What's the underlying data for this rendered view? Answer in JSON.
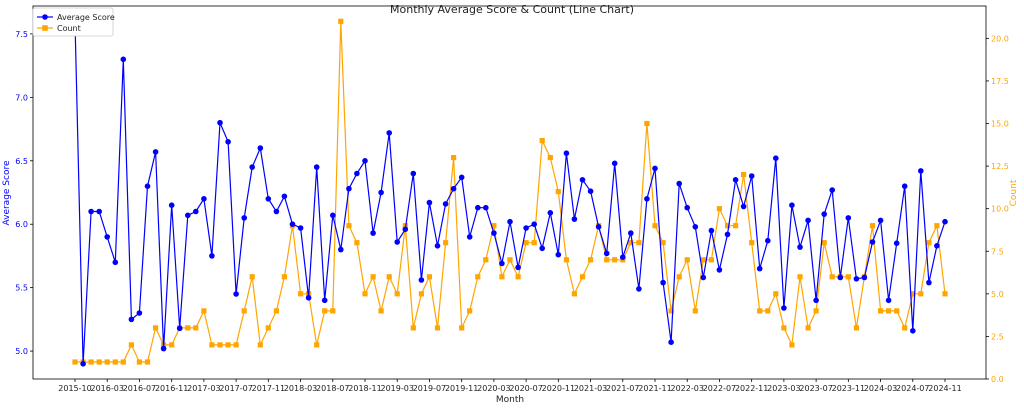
{
  "chart_data": {
    "type": "line",
    "title": "Monthly Average Score & Count (Line Chart)",
    "xlabel": "Month",
    "ylabel_left": "Average Score",
    "ylabel_right": "Count",
    "x_tick_labels": [
      "2015-10",
      "2016-03",
      "2016-07",
      "2016-11",
      "2017-03",
      "2017-07",
      "2017-11",
      "2018-03",
      "2018-07",
      "2018-11",
      "2019-03",
      "2019-07",
      "2019-11",
      "2020-03",
      "2020-07",
      "2020-11",
      "2021-03",
      "2021-07",
      "2021-11",
      "2022-03",
      "2022-07",
      "2022-11",
      "2023-03",
      "2023-07",
      "2023-11",
      "2024-03",
      "2024-07",
      "2024-11"
    ],
    "ylim_left": [
      4.78,
      7.72
    ],
    "ylim_right": [
      0,
      21.9
    ],
    "y_ticks_left": [
      "5.0",
      "5.5",
      "6.0",
      "6.5",
      "7.0",
      "7.5"
    ],
    "y_ticks_right": [
      "0.0",
      "2.5",
      "5.0",
      "7.5",
      "10.0",
      "12.5",
      "15.0",
      "17.5",
      "20.0"
    ],
    "legend_position": "top-left",
    "grid": false,
    "series": [
      {
        "name": "Average Score",
        "color": "#0000ff",
        "marker": "circle",
        "axis": "left",
        "values": [
          7.6,
          4.9,
          6.1,
          6.1,
          5.9,
          5.7,
          7.3,
          5.25,
          5.3,
          6.3,
          6.57,
          5.02,
          6.15,
          5.18,
          6.07,
          6.1,
          6.2,
          5.75,
          6.8,
          6.65,
          5.45,
          6.05,
          6.45,
          6.6,
          6.2,
          6.1,
          6.22,
          6.0,
          5.97,
          5.42,
          6.45,
          5.4,
          6.07,
          5.8,
          6.28,
          6.4,
          6.5,
          5.93,
          6.25,
          6.72,
          5.86,
          5.96,
          6.4,
          5.56,
          6.17,
          5.83,
          6.16,
          6.28,
          6.37,
          5.9,
          6.13,
          6.13,
          5.93,
          5.69,
          6.02,
          5.66,
          5.97,
          6.0,
          5.81,
          6.09,
          5.76,
          6.56,
          6.04,
          6.35,
          6.26,
          5.98,
          5.77,
          6.48,
          5.74,
          5.93,
          5.49,
          6.2,
          6.44,
          5.54,
          5.07,
          6.32,
          6.13,
          5.98,
          5.58,
          5.95,
          5.64,
          5.92,
          6.35,
          6.14,
          6.38,
          5.65,
          5.87,
          6.52,
          5.34,
          6.15,
          5.82,
          6.03,
          5.4,
          6.08,
          6.27,
          5.58,
          6.05,
          5.57,
          5.58,
          5.86,
          6.03,
          5.4,
          5.85,
          6.3,
          5.16,
          6.42,
          5.54,
          5.83,
          6.02
        ]
      },
      {
        "name": "Count",
        "color": "#ffa500",
        "marker": "square",
        "axis": "right",
        "values": [
          1,
          1,
          1,
          1,
          1,
          1,
          1,
          2,
          1,
          1,
          3,
          2,
          2,
          3,
          3,
          3,
          4,
          2,
          2,
          2,
          2,
          4,
          6,
          2,
          3,
          4,
          6,
          9,
          5,
          5,
          2,
          4,
          4,
          21,
          9,
          8,
          5,
          6,
          4,
          6,
          5,
          9,
          3,
          5,
          6,
          3,
          8,
          13,
          3,
          4,
          6,
          7,
          9,
          6,
          7,
          6,
          8,
          8,
          14,
          13,
          11,
          7,
          5,
          6,
          7,
          9,
          7,
          7,
          7,
          8,
          8,
          15,
          9,
          8,
          4,
          6,
          7,
          4,
          7,
          7,
          10,
          9,
          9,
          12,
          8,
          4,
          4,
          5,
          3,
          2,
          6,
          3,
          4,
          8,
          6,
          6,
          6,
          3,
          6,
          9,
          4,
          4,
          4,
          3,
          5,
          5,
          8,
          9,
          5
        ]
      }
    ]
  }
}
